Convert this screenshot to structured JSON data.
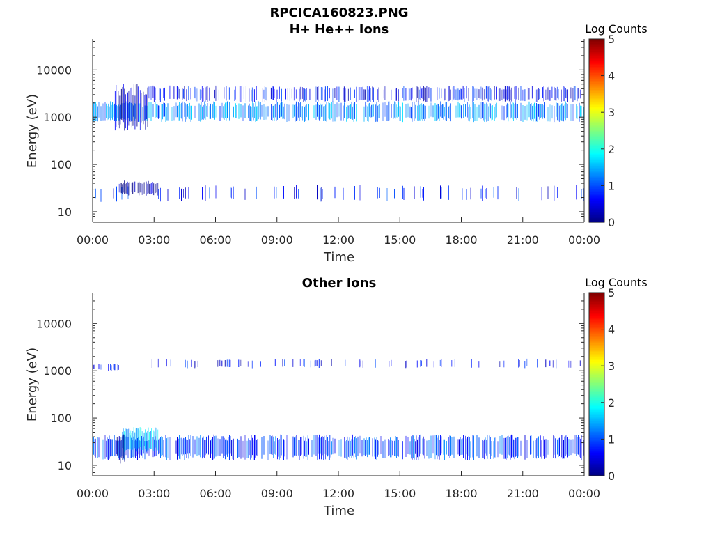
{
  "figure": {
    "title": "RPCICA160823.PNG"
  },
  "colors": {
    "axis": "#262626",
    "colormap": [
      "#00007f",
      "#0000ff",
      "#007fff",
      "#00ffff",
      "#7fff7f",
      "#ffff00",
      "#ff7f00",
      "#ff0000",
      "#7f0000"
    ]
  },
  "chart_data": [
    {
      "type": "heatmap",
      "title": "H+ He++ Ions",
      "xlabel": "Time",
      "ylabel": "Energy (eV)",
      "x_ticks": [
        "00:00",
        "03:00",
        "06:00",
        "09:00",
        "12:00",
        "15:00",
        "18:00",
        "21:00",
        "00:00"
      ],
      "x_range_hours": [
        0,
        24
      ],
      "y_scale": "log",
      "y_ticks": [
        "10",
        "100",
        "1000",
        "10000"
      ],
      "y_range": [
        6,
        45000
      ],
      "colorbar": {
        "label": "Log Counts",
        "ticks": [
          "0",
          "1",
          "2",
          "3",
          "4",
          "5"
        ],
        "range": [
          0,
          5
        ]
      },
      "features": [
        {
          "t_start": 0.0,
          "t_end": 24.0,
          "e_low": 900,
          "e_high": 1900,
          "level": 1.3,
          "density": 0.85
        },
        {
          "t_start": 2.7,
          "t_end": 24.0,
          "e_low": 2300,
          "e_high": 4200,
          "level": 0.6,
          "density": 0.55
        },
        {
          "t_start": 1.1,
          "t_end": 2.7,
          "e_low": 700,
          "e_high": 3800,
          "level": 0.25,
          "density": 0.9
        },
        {
          "t_start": 0.0,
          "t_end": 24.0,
          "e_low": 18,
          "e_high": 33,
          "level": 0.7,
          "density": 0.18
        },
        {
          "t_start": 1.3,
          "t_end": 3.2,
          "e_low": 24,
          "e_high": 42,
          "level": 0.15,
          "density": 0.8
        }
      ]
    },
    {
      "type": "heatmap",
      "title": "Other Ions",
      "xlabel": "Time",
      "ylabel": "Energy (eV)",
      "x_ticks": [
        "00:00",
        "03:00",
        "06:00",
        "09:00",
        "12:00",
        "15:00",
        "18:00",
        "21:00",
        "00:00"
      ],
      "x_range_hours": [
        0,
        24
      ],
      "y_scale": "log",
      "y_ticks": [
        "10",
        "100",
        "1000",
        "10000"
      ],
      "y_range": [
        6,
        45000
      ],
      "colorbar": {
        "label": "Log Counts",
        "ticks": [
          "0",
          "1",
          "2",
          "3",
          "4",
          "5"
        ],
        "range": [
          0,
          5
        ]
      },
      "features": [
        {
          "t_start": 0.0,
          "t_end": 24.0,
          "e_low": 15,
          "e_high": 38,
          "level": 0.9,
          "density": 0.85
        },
        {
          "t_start": 1.4,
          "t_end": 3.2,
          "e_low": 22,
          "e_high": 55,
          "level": 1.6,
          "density": 0.95
        },
        {
          "t_start": 1.2,
          "t_end": 1.6,
          "e_low": 13,
          "e_high": 40,
          "level": 0.1,
          "density": 0.9
        },
        {
          "t_start": 0.0,
          "t_end": 1.3,
          "e_low": 1050,
          "e_high": 1350,
          "level": 0.6,
          "density": 0.5
        },
        {
          "t_start": 2.9,
          "t_end": 24.0,
          "e_low": 1200,
          "e_high": 1700,
          "level": 0.6,
          "density": 0.18
        }
      ]
    }
  ]
}
